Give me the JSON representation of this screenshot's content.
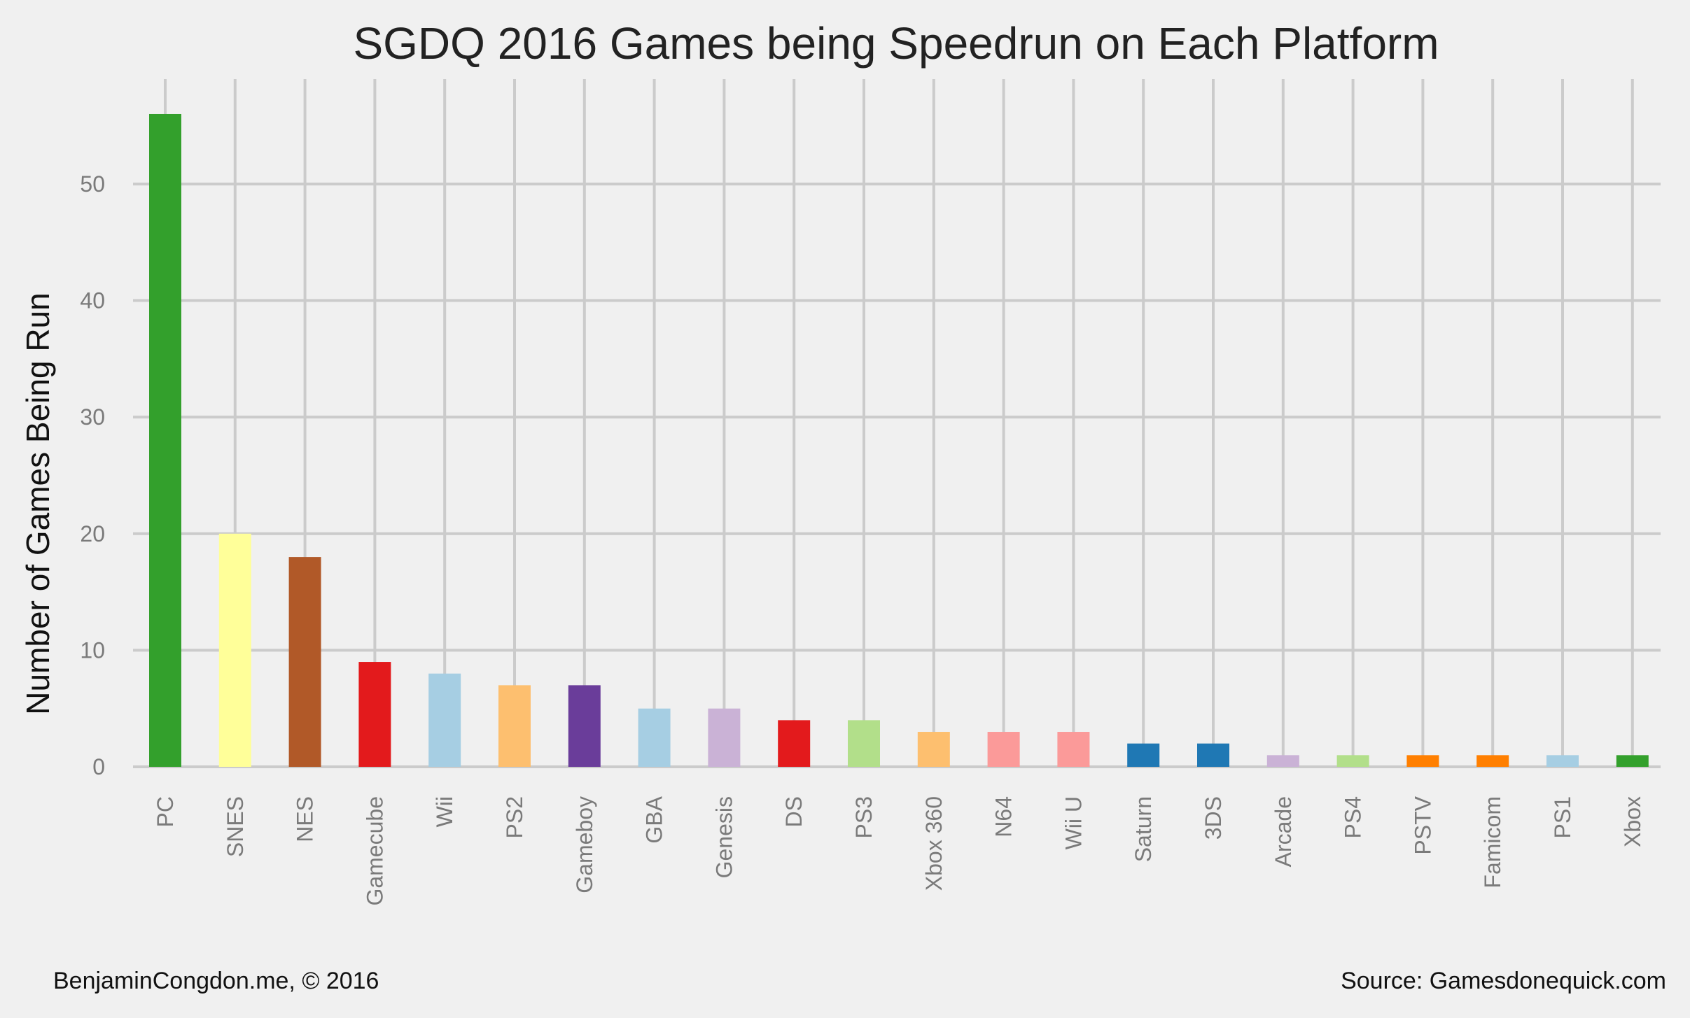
{
  "chart_data": {
    "type": "bar",
    "title": "SGDQ 2016 Games being Speedrun on Each Platform",
    "xlabel": "",
    "ylabel": "Number of Games Being Run",
    "ylim": [
      0,
      59
    ],
    "yticks": [
      0,
      10,
      20,
      30,
      40,
      50
    ],
    "grid": true,
    "legend": "none",
    "categories": [
      "PC",
      "SNES",
      "NES",
      "Gamecube",
      "Wii",
      "PS2",
      "Gameboy",
      "GBA",
      "Genesis",
      "DS",
      "PS3",
      "Xbox 360",
      "N64",
      "Wii U",
      "Saturn",
      "3DS",
      "Arcade",
      "PS4",
      "PSTV",
      "Famicom",
      "PS1",
      "Xbox"
    ],
    "values": [
      56,
      20,
      18,
      9,
      8,
      7,
      7,
      5,
      5,
      4,
      4,
      3,
      3,
      3,
      2,
      2,
      1,
      1,
      1,
      1,
      1,
      1
    ],
    "colors": [
      "#33a02c",
      "#ffff99",
      "#b15928",
      "#e31a1c",
      "#a6cee3",
      "#fdbf6f",
      "#6a3d9a",
      "#a6cee3",
      "#cab2d6",
      "#e31a1c",
      "#b2df8a",
      "#fdbf6f",
      "#fb9a99",
      "#fb9a99",
      "#1f78b4",
      "#1f78b4",
      "#cab2d6",
      "#b2df8a",
      "#ff7f00",
      "#ff7f00",
      "#a6cee3",
      "#33a02c"
    ]
  },
  "footer": {
    "credit": "BenjaminCongdon.me, © 2016",
    "source": "Source: Gamesdonequick.com"
  }
}
